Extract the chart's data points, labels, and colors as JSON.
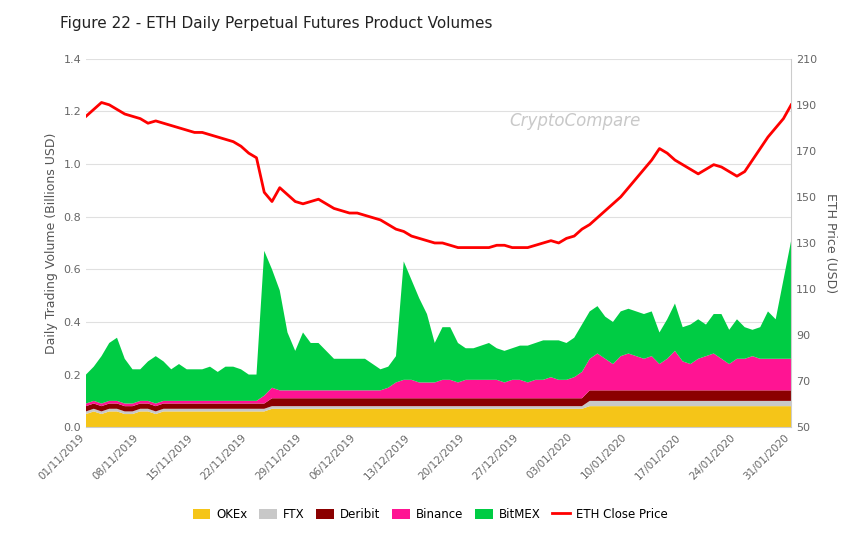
{
  "title": "Figure 22 - ETH Daily Perpetual Futures Product Volumes",
  "ylabel_left": "Daily Trading Volume (Billions USD)",
  "ylabel_right": "ETH Price (USD)",
  "watermark": "CryptoCompare",
  "xlim_left": 0,
  "xlim_right": 91,
  "ylim_left": [
    0,
    1.4
  ],
  "ylim_right": [
    50,
    210
  ],
  "yticks_left": [
    0,
    0.2,
    0.4,
    0.6,
    0.8,
    1.0,
    1.2,
    1.4
  ],
  "yticks_right": [
    50,
    70,
    90,
    110,
    130,
    150,
    170,
    190,
    210
  ],
  "xtick_labels": [
    "01/11/2019",
    "08/11/2019",
    "15/11/2019",
    "22/11/2019",
    "29/11/2019",
    "06/12/2019",
    "13/12/2019",
    "20/12/2019",
    "27/12/2019",
    "03/01/2020",
    "10/01/2020",
    "17/01/2020",
    "24/01/2020",
    "31/01/2020"
  ],
  "xtick_positions": [
    0,
    7,
    14,
    21,
    28,
    35,
    42,
    49,
    56,
    63,
    70,
    77,
    84,
    91
  ],
  "colors": {
    "OKEx": "#F5C518",
    "FTX": "#C8C8C8",
    "Deribit": "#8B0000",
    "Binance": "#FF1493",
    "BitMEX": "#00CC44",
    "ETH": "#FF0000"
  },
  "legend_entries": [
    "OKEx",
    "FTX",
    "Deribit",
    "Binance",
    "BitMEX",
    "ETH Close Price"
  ],
  "okex": [
    0.05,
    0.06,
    0.05,
    0.06,
    0.06,
    0.05,
    0.05,
    0.06,
    0.06,
    0.05,
    0.06,
    0.06,
    0.06,
    0.06,
    0.06,
    0.06,
    0.06,
    0.06,
    0.06,
    0.06,
    0.06,
    0.06,
    0.06,
    0.06,
    0.07,
    0.07,
    0.07,
    0.07,
    0.07,
    0.07,
    0.07,
    0.07,
    0.07,
    0.07,
    0.07,
    0.07,
    0.07,
    0.07,
    0.07,
    0.07,
    0.07,
    0.07,
    0.07,
    0.07,
    0.07,
    0.07,
    0.07,
    0.07,
    0.07,
    0.07,
    0.07,
    0.07,
    0.07,
    0.07,
    0.07,
    0.07,
    0.07,
    0.07,
    0.07,
    0.07,
    0.07,
    0.07,
    0.07,
    0.07,
    0.07,
    0.08,
    0.08,
    0.08,
    0.08,
    0.08,
    0.08,
    0.08,
    0.08,
    0.08,
    0.08,
    0.08,
    0.08,
    0.08,
    0.08,
    0.08,
    0.08,
    0.08,
    0.08,
    0.08,
    0.08,
    0.08,
    0.08,
    0.08,
    0.08,
    0.08,
    0.08,
    0.08
  ],
  "ftx": [
    0.01,
    0.01,
    0.01,
    0.01,
    0.01,
    0.01,
    0.01,
    0.01,
    0.01,
    0.01,
    0.01,
    0.01,
    0.01,
    0.01,
    0.01,
    0.01,
    0.01,
    0.01,
    0.01,
    0.01,
    0.01,
    0.01,
    0.01,
    0.01,
    0.01,
    0.01,
    0.01,
    0.01,
    0.01,
    0.01,
    0.01,
    0.01,
    0.01,
    0.01,
    0.01,
    0.01,
    0.01,
    0.01,
    0.01,
    0.01,
    0.01,
    0.01,
    0.01,
    0.01,
    0.01,
    0.01,
    0.01,
    0.01,
    0.01,
    0.01,
    0.01,
    0.01,
    0.01,
    0.01,
    0.01,
    0.01,
    0.01,
    0.01,
    0.01,
    0.01,
    0.01,
    0.01,
    0.01,
    0.01,
    0.01,
    0.02,
    0.02,
    0.02,
    0.02,
    0.02,
    0.02,
    0.02,
    0.02,
    0.02,
    0.02,
    0.02,
    0.02,
    0.02,
    0.02,
    0.02,
    0.02,
    0.02,
    0.02,
    0.02,
    0.02,
    0.02,
    0.02,
    0.02,
    0.02,
    0.02,
    0.02,
    0.02
  ],
  "deribit": [
    0.02,
    0.02,
    0.02,
    0.02,
    0.02,
    0.02,
    0.02,
    0.02,
    0.02,
    0.02,
    0.02,
    0.02,
    0.02,
    0.02,
    0.02,
    0.02,
    0.02,
    0.02,
    0.02,
    0.02,
    0.02,
    0.02,
    0.02,
    0.02,
    0.03,
    0.03,
    0.03,
    0.03,
    0.03,
    0.03,
    0.03,
    0.03,
    0.03,
    0.03,
    0.03,
    0.03,
    0.03,
    0.03,
    0.03,
    0.03,
    0.03,
    0.03,
    0.03,
    0.03,
    0.03,
    0.03,
    0.03,
    0.03,
    0.03,
    0.03,
    0.03,
    0.03,
    0.03,
    0.03,
    0.03,
    0.03,
    0.03,
    0.03,
    0.03,
    0.03,
    0.03,
    0.03,
    0.03,
    0.03,
    0.03,
    0.04,
    0.04,
    0.04,
    0.04,
    0.04,
    0.04,
    0.04,
    0.04,
    0.04,
    0.04,
    0.04,
    0.04,
    0.04,
    0.04,
    0.04,
    0.04,
    0.04,
    0.04,
    0.04,
    0.04,
    0.04,
    0.04,
    0.04,
    0.04,
    0.04,
    0.04,
    0.04
  ],
  "binance": [
    0.01,
    0.01,
    0.01,
    0.01,
    0.01,
    0.01,
    0.01,
    0.01,
    0.01,
    0.01,
    0.01,
    0.01,
    0.01,
    0.01,
    0.01,
    0.01,
    0.01,
    0.01,
    0.01,
    0.01,
    0.01,
    0.01,
    0.01,
    0.03,
    0.04,
    0.03,
    0.03,
    0.03,
    0.03,
    0.03,
    0.03,
    0.03,
    0.03,
    0.03,
    0.03,
    0.03,
    0.03,
    0.03,
    0.03,
    0.04,
    0.06,
    0.07,
    0.07,
    0.06,
    0.06,
    0.06,
    0.07,
    0.07,
    0.06,
    0.07,
    0.07,
    0.07,
    0.07,
    0.07,
    0.06,
    0.07,
    0.07,
    0.06,
    0.07,
    0.07,
    0.08,
    0.07,
    0.07,
    0.08,
    0.1,
    0.12,
    0.14,
    0.12,
    0.1,
    0.13,
    0.14,
    0.13,
    0.12,
    0.13,
    0.1,
    0.12,
    0.15,
    0.11,
    0.1,
    0.12,
    0.13,
    0.14,
    0.12,
    0.1,
    0.12,
    0.12,
    0.13,
    0.12,
    0.12,
    0.12,
    0.12,
    0.12
  ],
  "bitmex": [
    0.11,
    0.13,
    0.18,
    0.22,
    0.24,
    0.17,
    0.13,
    0.12,
    0.15,
    0.18,
    0.15,
    0.12,
    0.14,
    0.12,
    0.12,
    0.12,
    0.13,
    0.11,
    0.13,
    0.13,
    0.12,
    0.1,
    0.1,
    0.55,
    0.45,
    0.38,
    0.22,
    0.15,
    0.22,
    0.18,
    0.18,
    0.15,
    0.12,
    0.12,
    0.12,
    0.12,
    0.12,
    0.1,
    0.08,
    0.08,
    0.1,
    0.45,
    0.38,
    0.32,
    0.26,
    0.15,
    0.2,
    0.2,
    0.15,
    0.12,
    0.12,
    0.13,
    0.14,
    0.12,
    0.12,
    0.12,
    0.13,
    0.14,
    0.14,
    0.15,
    0.14,
    0.15,
    0.14,
    0.15,
    0.18,
    0.18,
    0.18,
    0.16,
    0.16,
    0.17,
    0.17,
    0.17,
    0.17,
    0.17,
    0.12,
    0.15,
    0.18,
    0.13,
    0.15,
    0.15,
    0.12,
    0.15,
    0.17,
    0.13,
    0.15,
    0.12,
    0.1,
    0.12,
    0.18,
    0.15,
    0.3,
    0.45
  ],
  "eth_price": [
    185,
    188,
    191,
    190,
    188,
    186,
    185,
    184,
    182,
    183,
    182,
    181,
    180,
    179,
    178,
    178,
    177,
    176,
    175,
    174,
    172,
    169,
    167,
    152,
    148,
    154,
    151,
    148,
    147,
    148,
    149,
    147,
    145,
    144,
    143,
    143,
    142,
    141,
    140,
    138,
    136,
    135,
    133,
    132,
    131,
    130,
    130,
    129,
    128,
    128,
    128,
    128,
    128,
    129,
    129,
    128,
    128,
    128,
    129,
    130,
    131,
    130,
    132,
    133,
    136,
    138,
    141,
    144,
    147,
    150,
    154,
    158,
    162,
    166,
    171,
    169,
    166,
    164,
    162,
    160,
    162,
    164,
    163,
    161,
    159,
    161,
    166,
    171,
    176,
    180,
    184,
    190
  ]
}
